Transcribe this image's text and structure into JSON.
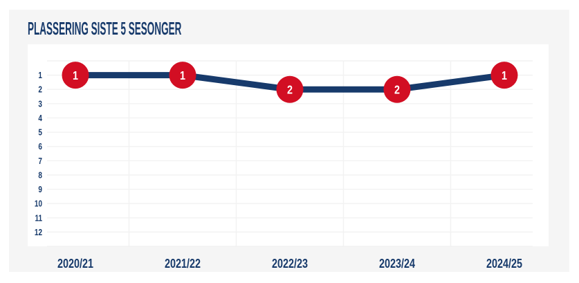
{
  "title": "PLASSERING SISTE 5 SESONGER",
  "colors": {
    "page_bg": "#ffffff",
    "panel_bg": "#f5f5f5",
    "plot_bg": "#ffffff",
    "navy": "#173a6b",
    "red": "#d20e23",
    "grid": "#f2f2f2",
    "marker_text": "#ffffff"
  },
  "chart_data": {
    "type": "line",
    "title": "PLASSERING SISTE 5 SESONGER",
    "categories": [
      "2020/21",
      "2021/22",
      "2022/23",
      "2023/24",
      "2024/25"
    ],
    "series": [
      {
        "name": "Plassering",
        "values": [
          1,
          1,
          2,
          2,
          1
        ]
      }
    ],
    "marker_labels": [
      "1",
      "1",
      "2",
      "2",
      "1"
    ],
    "xlabel": "",
    "ylabel": "",
    "y_ticks": [
      1,
      2,
      3,
      4,
      5,
      6,
      7,
      8,
      9,
      10,
      11,
      12
    ],
    "ylim": [
      0,
      13
    ],
    "y_axis_reversed": true,
    "grid": true,
    "legend_position": "none"
  }
}
